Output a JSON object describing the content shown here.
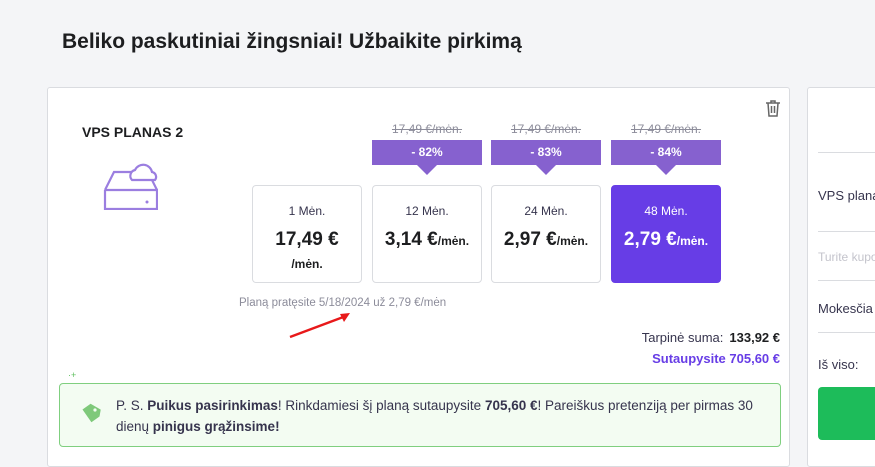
{
  "page": {
    "title": "Beliko paskutiniai žingsniai! Užbaikite pirkimą"
  },
  "plan": {
    "name": "VPS PLANAS 2",
    "icon": "cloud-server-icon",
    "options": [
      {
        "period": "1 Mėn.",
        "price": "17,49 €",
        "unit": "/mėn.",
        "old_price": "",
        "discount": "",
        "selected": false
      },
      {
        "period": "12 Mėn.",
        "price": "3,14 €",
        "unit": "/mėn.",
        "old_price": "17,49 €/mėn.",
        "discount": "- 82%",
        "selected": false
      },
      {
        "period": "24 Mėn.",
        "price": "2,97 €",
        "unit": "/mėn.",
        "old_price": "17,49 €/mėn.",
        "discount": "- 83%",
        "selected": false
      },
      {
        "period": "48 Mėn.",
        "price": "2,79 €",
        "unit": "/mėn.",
        "old_price": "17,49 €/mėn.",
        "discount": "- 84%",
        "selected": true
      }
    ],
    "renewal": "Planą pratęsite 5/18/2024 už 2,79 €/mėn"
  },
  "totals": {
    "subtotal_label": "Tarpinė suma:",
    "subtotal": "133,92 €",
    "savings": "Sutaupysite 705,60 €"
  },
  "note": {
    "p1": "P. S. ",
    "b1": "Puikus pasirinkimas",
    "p2": "! Rinkdamiesi šį planą sutaupysite ",
    "b2": "705,60 €",
    "p3": "! Pareiškus pretenziją per pirmas 30 dienų ",
    "b3": "pinigus grąžinsime!"
  },
  "summary": {
    "plan": "VPS plana",
    "coupon": "Turite kupo",
    "taxes": "Mokesčia",
    "total": "Iš viso:"
  },
  "colors": {
    "accent": "#673de6",
    "badge": "#8661cf",
    "success": "#1dbc5a"
  }
}
